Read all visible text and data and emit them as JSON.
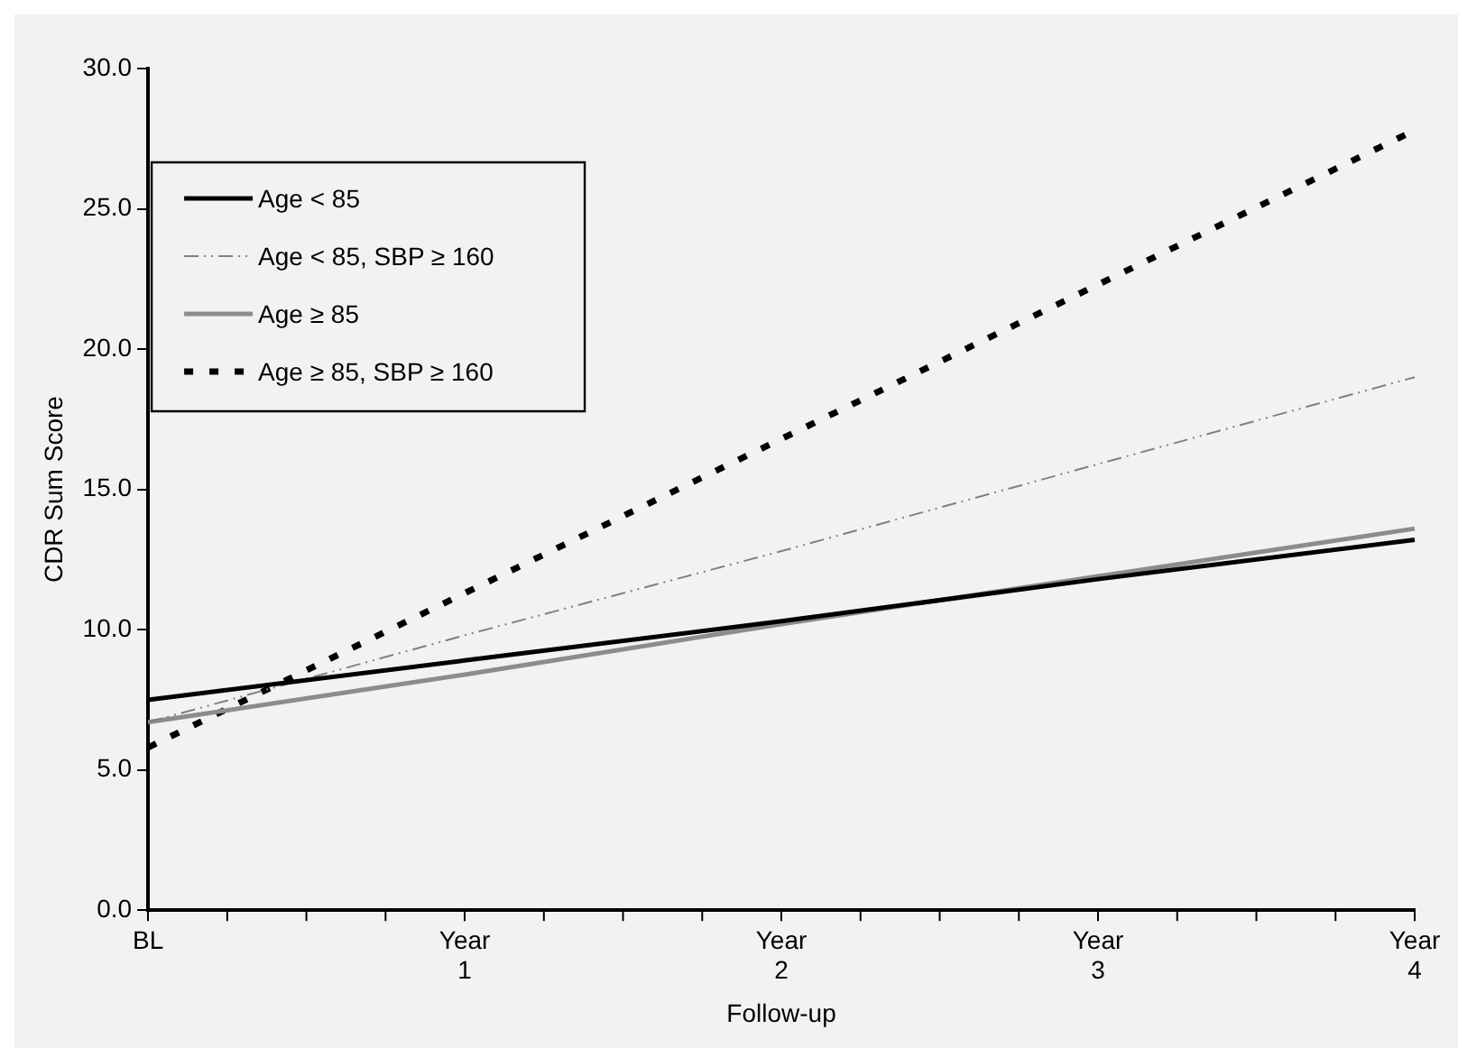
{
  "chart_data": {
    "type": "line",
    "xlabel": "Follow-up",
    "ylabel": "CDR Sum Score",
    "categories": [
      "BL",
      "Year 1",
      "Year 2",
      "Year 3",
      "Year 4"
    ],
    "series": [
      {
        "name": "Age < 85",
        "color": "#000000",
        "line_style": "solid",
        "values": [
          7.5,
          8.9,
          10.3,
          11.8,
          13.2
        ]
      },
      {
        "name": "Age < 85, SBP ≥ 160",
        "color": "#808080",
        "line_style": "dotted",
        "values": [
          6.7,
          9.8,
          12.8,
          15.9,
          19.0
        ]
      },
      {
        "name": "Age ≥ 85",
        "color": "#8c8c8c",
        "line_style": "solid",
        "values": [
          6.7,
          8.4,
          10.2,
          11.9,
          13.6
        ]
      },
      {
        "name": "Age ≥ 85, SBP ≥ 160",
        "color": "#000000",
        "line_style": "dashed",
        "values": [
          5.8,
          11.3,
          16.8,
          22.3,
          27.8
        ]
      }
    ],
    "ylim": [
      0,
      30
    ],
    "yticks": [
      {
        "value": 0,
        "label": "0.0"
      },
      {
        "value": 5,
        "label": "5.0"
      },
      {
        "value": 10,
        "label": "10.0"
      },
      {
        "value": 15,
        "label": "15.0"
      },
      {
        "value": 20,
        "label": "20.0"
      },
      {
        "value": 25,
        "label": "25.0"
      },
      {
        "value": 30,
        "label": "30.0"
      }
    ],
    "grid": false,
    "legend": "top left",
    "marker": "none"
  }
}
